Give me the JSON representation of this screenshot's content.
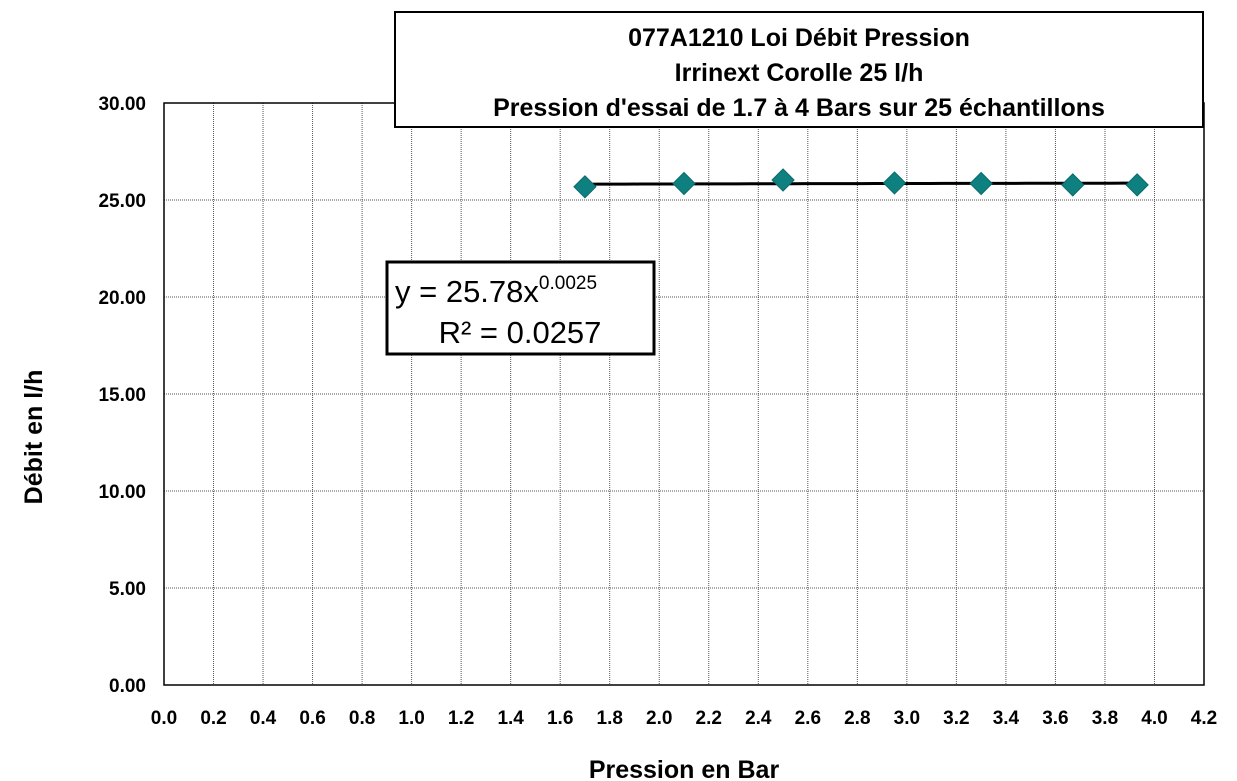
{
  "chart_data": {
    "type": "scatter",
    "title": [
      "077A1210 Loi Débit Pression",
      "Irrinext Corolle 25 l/h",
      "Pression d'essai de 1.7 à 4 Bars sur 25 échantillons"
    ],
    "xlabel": "Pression en Bar",
    "ylabel": "Débit en l/h",
    "xlim": [
      0,
      4.2
    ],
    "ylim": [
      0,
      30
    ],
    "x_ticks": [
      "0.0",
      "0.2",
      "0.4",
      "0.6",
      "0.8",
      "1.0",
      "1.2",
      "1.4",
      "1.6",
      "1.8",
      "2.0",
      "2.2",
      "2.4",
      "2.6",
      "2.8",
      "3.0",
      "3.2",
      "3.4",
      "3.6",
      "3.8",
      "4.0",
      "4.2"
    ],
    "y_ticks": [
      "0.00",
      "5.00",
      "10.00",
      "15.00",
      "20.00",
      "25.00",
      "30.00"
    ],
    "grid": true,
    "series": [
      {
        "marker": "diamond",
        "color": "#0f8080",
        "x": [
          1.7,
          2.1,
          2.5,
          2.95,
          3.3,
          3.67,
          3.93
        ],
        "y": [
          25.68,
          25.85,
          26.03,
          25.88,
          25.85,
          25.78,
          25.78
        ]
      }
    ],
    "trendline": {
      "type": "power",
      "coefficient": 25.78,
      "exponent": 0.0025,
      "color": "#000000",
      "equation_prefix": "y = 25.78x",
      "equation_exponent": "0.0025",
      "r2_text": "R² = 0.0257"
    }
  }
}
